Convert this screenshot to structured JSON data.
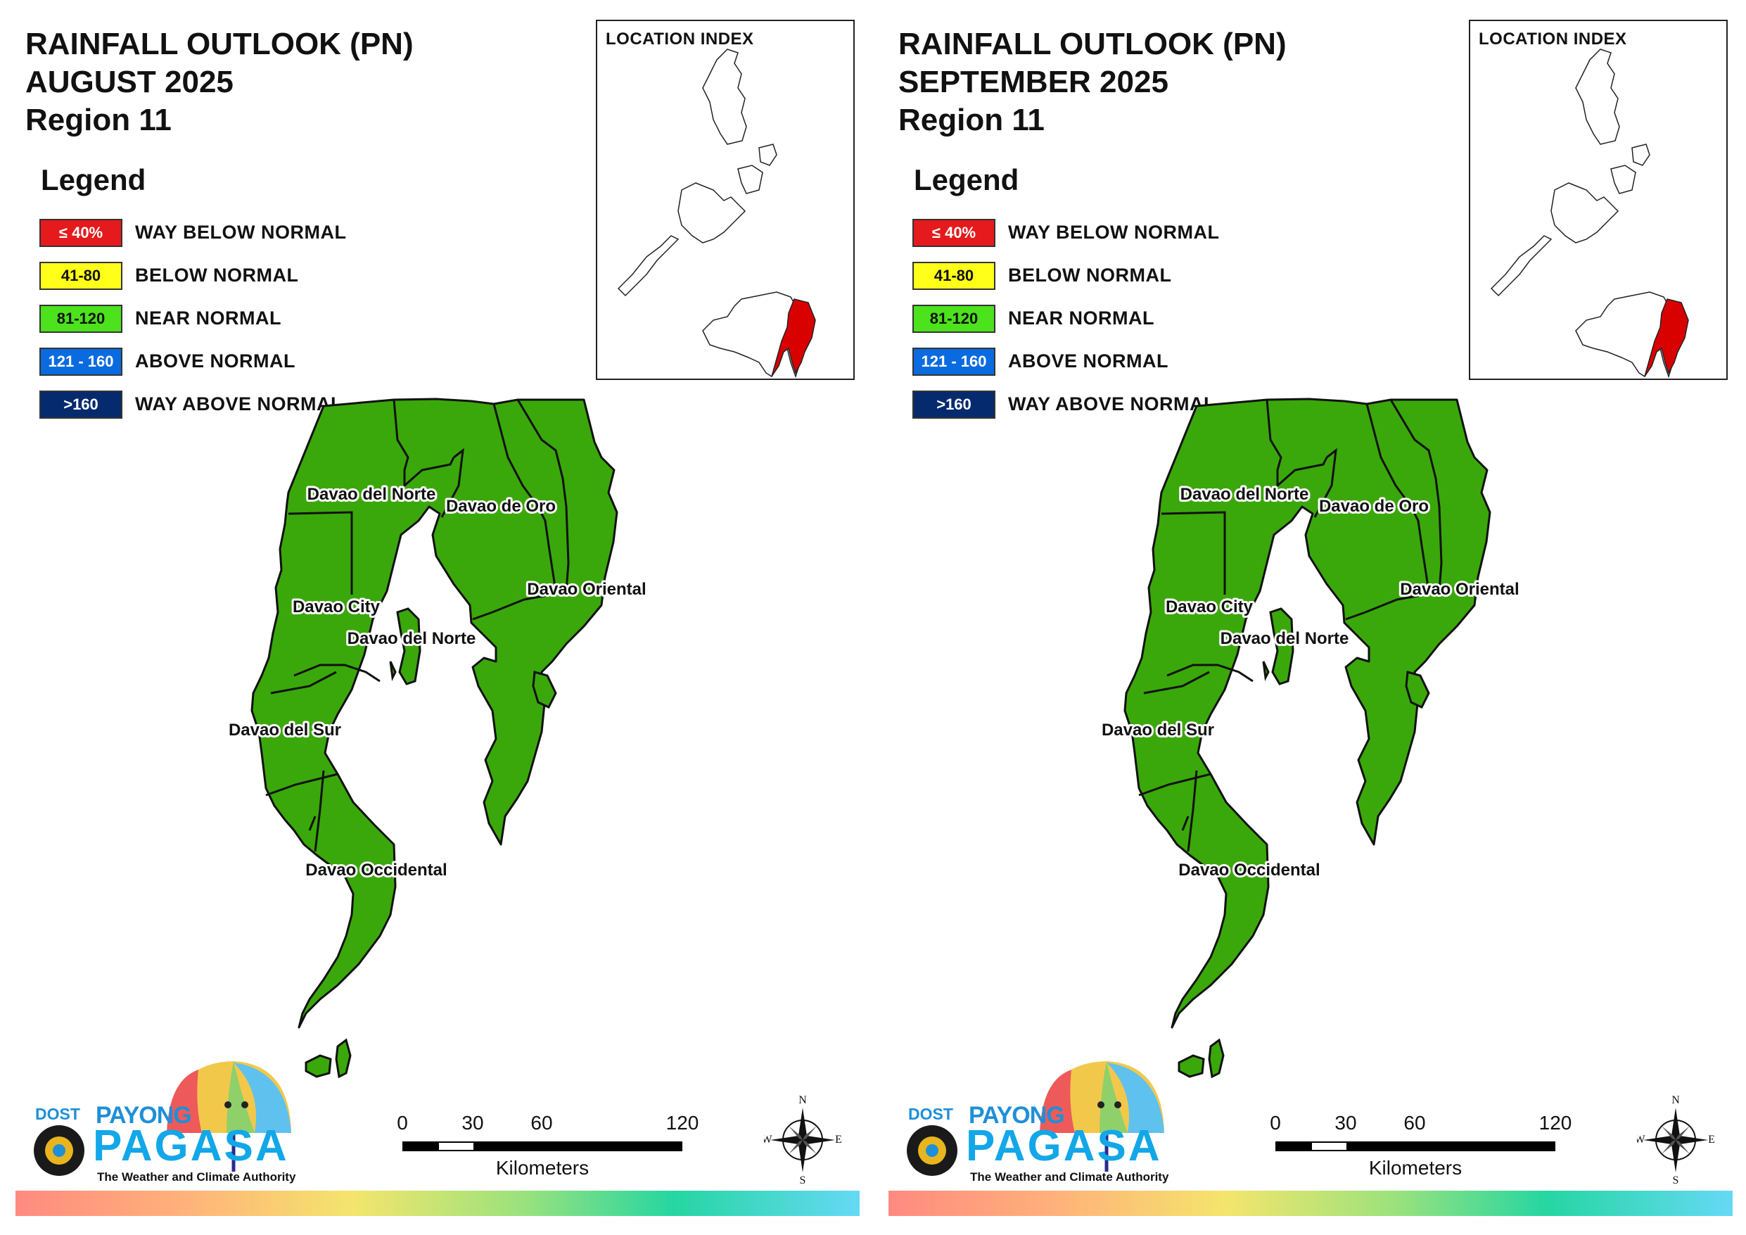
{
  "colors": {
    "way_below": "#e41a1c",
    "below": "#ffff1a",
    "near": "#3aa80a",
    "near_legend": "#4ce21c",
    "above": "#0a6be0",
    "way_above": "#062a6e",
    "highlight": "#d90000"
  },
  "legend_heading": "Legend",
  "legend": [
    {
      "swatch": "≤ 40%",
      "label": "WAY BELOW NORMAL",
      "color": "#e41a1c",
      "text_color": "#ffffff"
    },
    {
      "swatch": "41-80",
      "label": "BELOW NORMAL",
      "color": "#ffff1a",
      "text_color": "#111111"
    },
    {
      "swatch": "81-120",
      "label": "NEAR NORMAL",
      "color": "#4ce21c",
      "text_color": "#111111"
    },
    {
      "swatch": "121 - 160",
      "label": "ABOVE NORMAL",
      "color": "#0a6be0",
      "text_color": "#ffffff"
    },
    {
      "swatch": ">160",
      "label": "WAY ABOVE NORMAL",
      "color": "#062a6e",
      "text_color": "#ffffff"
    }
  ],
  "location_index": "LOCATION INDEX",
  "map_labels": [
    "Davao del Norte",
    "Davao de Oro",
    "Davao City",
    "Davao del Norte",
    "Davao Oriental",
    "Davao del Sur",
    "Davao Occidental"
  ],
  "scale": {
    "ticks": [
      "0",
      "30",
      "60",
      "120"
    ],
    "unit": "Kilometers"
  },
  "compass": {
    "n": "N",
    "s": "S",
    "e": "E",
    "w": "W"
  },
  "logo": {
    "dost": "DOST",
    "payong": "PAYONG",
    "pagasa": "PAGASA",
    "tagline": "The Weather and Climate Authority"
  },
  "panels": [
    {
      "title": [
        "RAINFALL OUTLOOK (PN)",
        "AUGUST 2025",
        "Region 11"
      ],
      "map": {
        "provinces": [
          {
            "name": "Davao del Norte",
            "category": "NEAR NORMAL"
          },
          {
            "name": "Davao de Oro",
            "category": "NEAR NORMAL"
          },
          {
            "name": "Davao City",
            "category": "NEAR NORMAL"
          },
          {
            "name": "Davao Oriental",
            "category": "NEAR NORMAL"
          },
          {
            "name": "Davao del Sur",
            "category": "NEAR NORMAL"
          },
          {
            "name": "Davao Occidental",
            "category": "NEAR NORMAL"
          }
        ]
      }
    },
    {
      "title": [
        "RAINFALL OUTLOOK (PN)",
        "SEPTEMBER 2025",
        "Region 11"
      ],
      "map": {
        "provinces": [
          {
            "name": "Davao del Norte",
            "category": "NEAR NORMAL"
          },
          {
            "name": "Davao de Oro",
            "category": "NEAR NORMAL"
          },
          {
            "name": "Davao City",
            "category": "NEAR NORMAL"
          },
          {
            "name": "Davao Oriental",
            "category": "NEAR NORMAL"
          },
          {
            "name": "Davao del Sur",
            "category": "NEAR NORMAL"
          },
          {
            "name": "Davao Occidental",
            "category": "NEAR NORMAL"
          }
        ]
      }
    }
  ]
}
